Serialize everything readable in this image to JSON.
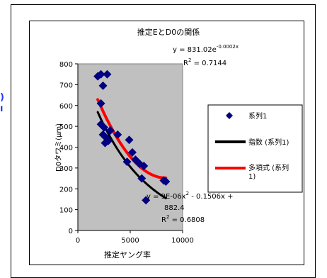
{
  "chart_data": {
    "type": "scatter",
    "title": "推定EとD0の関係",
    "xlabel": "推定ヤング率",
    "ylabel": "D0タワミ(μm)",
    "xlim": [
      0,
      10000
    ],
    "ylim": [
      0,
      800
    ],
    "xticks": [
      "0",
      "5000",
      "10000"
    ],
    "yticks": [
      "0",
      "100",
      "200",
      "300",
      "400",
      "500",
      "600",
      "700",
      "800"
    ],
    "grid": false,
    "plot_background": "#c0c0c0",
    "legend_position": "right",
    "series": [
      {
        "name": "系列1",
        "color": "#000080",
        "marker": "diamond",
        "points": [
          [
            1900,
            740
          ],
          [
            2200,
            750
          ],
          [
            2800,
            750
          ],
          [
            2400,
            695
          ],
          [
            2200,
            610
          ],
          [
            2200,
            510
          ],
          [
            2500,
            495
          ],
          [
            2400,
            460
          ],
          [
            2700,
            445
          ],
          [
            2600,
            420
          ],
          [
            2900,
            430
          ],
          [
            3100,
            480
          ],
          [
            3800,
            460
          ],
          [
            4900,
            435
          ],
          [
            5200,
            375
          ],
          [
            4700,
            330
          ],
          [
            5500,
            340
          ],
          [
            5900,
            320
          ],
          [
            6300,
            310
          ],
          [
            6100,
            250
          ],
          [
            6500,
            145
          ],
          [
            8200,
            240
          ],
          [
            8400,
            235
          ]
        ]
      }
    ],
    "trendlines": [
      {
        "name": "指数 (系列1)",
        "type": "exponential",
        "color": "#000000",
        "a": 831.02,
        "b": -0.0002,
        "x_range": [
          1900,
          8400
        ],
        "equation_text": {
          "lead": "y = 831.02e",
          "exponent": "-0.0002x"
        },
        "r2_text": {
          "prefix": "R",
          "sup": "2",
          "value": " = 0.7144"
        }
      },
      {
        "name": "多項式 (系列1)",
        "type": "polynomial",
        "color": "#ff0000",
        "coeffs": [
          9e-06,
          -0.1506,
          882.4
        ],
        "x_range": [
          1900,
          8400
        ],
        "equation_text": {
          "line1_a": "y = 9E-06x",
          "line1_sup": "2",
          "line1_b": " - 0.1506x +",
          "line2": "882.4"
        },
        "r2_text": {
          "prefix": "R",
          "sup": "2",
          "value": " = 0.6808"
        }
      }
    ],
    "legend": {
      "entries": [
        {
          "label": "系列1",
          "kind": "marker",
          "color": "#000080"
        },
        {
          "label": "指数 (系列1)",
          "kind": "line",
          "color": "#000000"
        },
        {
          "label_line1": "多項式 (系列",
          "label_line2": "1)",
          "kind": "line",
          "color": "#ff0000"
        }
      ]
    }
  }
}
